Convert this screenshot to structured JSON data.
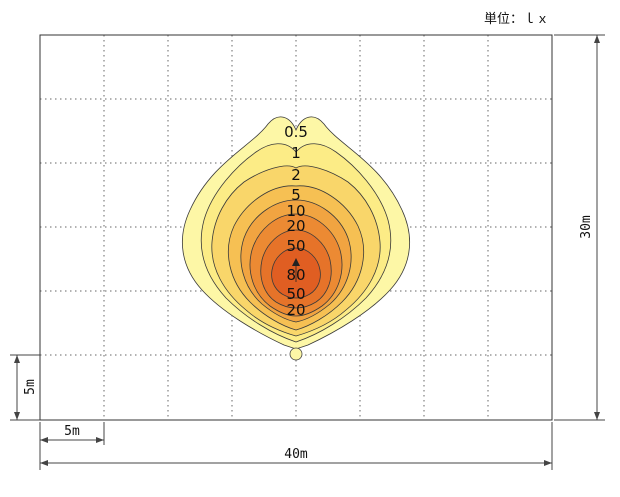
{
  "unit_label": "単位：ｌｘ",
  "dimensions": {
    "width": "40m",
    "height": "30m",
    "grid_x": "5m",
    "grid_y": "5m"
  },
  "contour_labels": [
    "0.5",
    "1",
    "2",
    "5",
    "10",
    "20",
    "50",
    "80",
    "50",
    "20"
  ],
  "colors": {
    "level_0_5": "#fdf7a6",
    "level_1": "#fcec86",
    "level_2": "#f9d66a",
    "level_5": "#f6c053",
    "level_10": "#f1a441",
    "level_20": "#ec8a33",
    "level_50": "#e67329",
    "level_80": "#e05e22"
  }
}
